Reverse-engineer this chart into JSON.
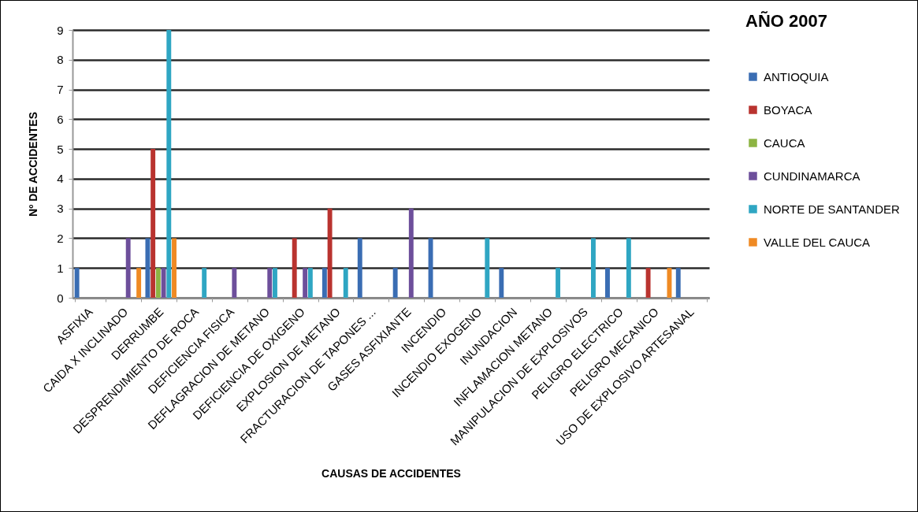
{
  "chart_data": {
    "type": "bar",
    "title": "AÑO 2007",
    "xlabel": "CAUSAS DE ACCIDENTES",
    "ylabel": "Nº DE ACCIDENTES",
    "categories": [
      "ASFIXIA",
      "CAIDA X INCLINADO",
      "DERRUMBE",
      "DESPRENDIMIENTO DE ROCA",
      "DEFICIENCIA FISICA",
      "DEFLAGRACION DE METANO",
      "DEFICIENCIA DE OXIGENO",
      "EXPLOSION DE METANO",
      "FRACTURACION DE TAPONES ...",
      "GASES ASFIXIANTE",
      "INCENDIO",
      "INCENDIO EXOGENO",
      "INUNDACION",
      "INFLAMACION METANO",
      "MANIPULACION DE EXPLOSIVOS",
      "PELIGRO ELECTRICO",
      "PELIGRO MECANICO",
      "USO DE EXPLOSIVO ARTESANAL"
    ],
    "series": [
      {
        "name": "ANTIOQUIA",
        "color": "#3a6db3",
        "values": [
          1,
          null,
          2,
          null,
          null,
          null,
          null,
          1,
          2,
          1,
          2,
          null,
          1,
          null,
          null,
          1,
          null,
          1
        ]
      },
      {
        "name": "BOYACA",
        "color": "#b9332f",
        "values": [
          null,
          null,
          5,
          null,
          null,
          null,
          2,
          3,
          null,
          null,
          null,
          null,
          null,
          null,
          null,
          null,
          1,
          null
        ]
      },
      {
        "name": "CAUCA",
        "color": "#8db443",
        "values": [
          null,
          null,
          1,
          null,
          null,
          null,
          null,
          null,
          null,
          null,
          null,
          null,
          null,
          null,
          null,
          null,
          null,
          null
        ]
      },
      {
        "name": "CUNDINAMARCA",
        "color": "#6d4f9b",
        "values": [
          null,
          2,
          1,
          null,
          1,
          1,
          1,
          null,
          null,
          3,
          null,
          null,
          null,
          null,
          null,
          null,
          null,
          null
        ]
      },
      {
        "name": "NORTE DE SANTANDER",
        "color": "#2fa6c3",
        "values": [
          null,
          null,
          9,
          1,
          null,
          1,
          1,
          1,
          null,
          null,
          null,
          2,
          null,
          1,
          2,
          2,
          null,
          null
        ]
      },
      {
        "name": "VALLE DEL CAUCA",
        "color": "#ef8a24",
        "values": [
          null,
          1,
          2,
          null,
          null,
          null,
          null,
          null,
          null,
          null,
          null,
          null,
          null,
          null,
          null,
          null,
          1,
          null
        ]
      }
    ],
    "ylim": [
      0,
      9
    ],
    "yticks": [
      0,
      1,
      2,
      3,
      4,
      5,
      6,
      7,
      8,
      9
    ],
    "grid": "y",
    "legend": "right"
  }
}
